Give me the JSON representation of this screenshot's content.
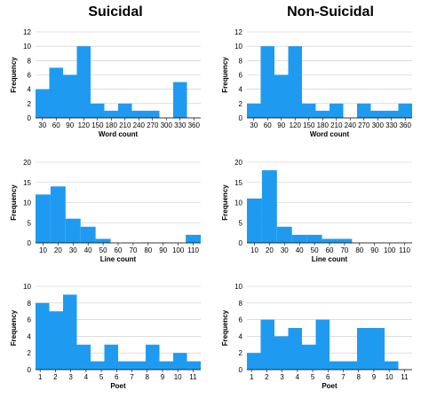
{
  "column_titles": [
    "Suicidal",
    "Non-Suicidal"
  ],
  "colors": {
    "bar": "#1E9BF0",
    "axis": "#000000",
    "grid": "#c8c8c8"
  },
  "chart_data": [
    {
      "type": "bar",
      "group": "Suicidal",
      "row": 0,
      "xlabel": "Word count",
      "ylabel": "Frequency",
      "ylim": [
        0,
        12
      ],
      "yticks": [
        0,
        2,
        4,
        6,
        8,
        10,
        12
      ],
      "xticks": [
        30,
        60,
        90,
        120,
        150,
        180,
        210,
        240,
        270,
        300,
        330,
        360
      ],
      "xtick_labels": [
        "30",
        "60",
        "90",
        "120",
        "150",
        "180",
        "210",
        "240",
        "270",
        "300",
        "330",
        "360"
      ],
      "bin_edges": [
        15,
        45,
        75,
        105,
        135,
        165,
        195,
        225,
        255,
        285,
        315,
        345
      ],
      "values": [
        4,
        7,
        6,
        10,
        2,
        1,
        2,
        1,
        1,
        0,
        5
      ]
    },
    {
      "type": "bar",
      "group": "Non-Suicidal",
      "row": 0,
      "xlabel": "Word count",
      "ylabel": "Frequency",
      "ylim": [
        0,
        12
      ],
      "yticks": [
        0,
        2,
        4,
        6,
        8,
        10,
        12
      ],
      "xticks": [
        30,
        60,
        90,
        120,
        150,
        180,
        210,
        240,
        270,
        300,
        330,
        360
      ],
      "xtick_labels": [
        "30",
        "60",
        "90",
        "120",
        "150",
        "180",
        "210",
        "240",
        "270",
        "300",
        "330",
        "360"
      ],
      "bin_edges": [
        15,
        45,
        75,
        105,
        135,
        165,
        195,
        225,
        255,
        285,
        315,
        345,
        375
      ],
      "values": [
        2,
        10,
        6,
        10,
        2,
        1,
        2,
        0,
        2,
        1,
        1,
        2
      ]
    },
    {
      "type": "bar",
      "group": "Suicidal",
      "row": 1,
      "xlabel": "Line count",
      "ylabel": "Frequency",
      "ylim": [
        0,
        20
      ],
      "yticks": [
        0,
        5,
        10,
        15,
        20
      ],
      "xticks": [
        10,
        20,
        30,
        40,
        50,
        60,
        70,
        80,
        90,
        100,
        110
      ],
      "xtick_labels": [
        "10",
        "20",
        "30",
        "40",
        "50",
        "60",
        "70",
        "80",
        "90",
        "100",
        "110"
      ],
      "bin_edges": [
        5,
        15,
        25,
        35,
        45,
        55,
        65,
        75,
        85,
        95,
        105,
        115
      ],
      "values": [
        12,
        14,
        6,
        4,
        1,
        0,
        0,
        0,
        0,
        0,
        2
      ]
    },
    {
      "type": "bar",
      "group": "Non-Suicidal",
      "row": 1,
      "xlabel": "Line count",
      "ylabel": "Frequency",
      "ylim": [
        0,
        20
      ],
      "yticks": [
        0,
        5,
        10,
        15,
        20
      ],
      "xticks": [
        10,
        20,
        30,
        40,
        50,
        60,
        70,
        80,
        90,
        100,
        110
      ],
      "xtick_labels": [
        "10",
        "20",
        "30",
        "40",
        "50",
        "60",
        "70",
        "80",
        "90",
        "100",
        "110"
      ],
      "bin_edges": [
        5,
        15,
        25,
        35,
        45,
        55,
        65,
        75,
        85,
        95,
        105,
        115
      ],
      "values": [
        11,
        18,
        4,
        2,
        2,
        1,
        1,
        0,
        0,
        0,
        0
      ]
    },
    {
      "type": "bar",
      "group": "Suicidal",
      "row": 2,
      "xlabel": "Poet",
      "ylabel": "Frequency",
      "ylim": [
        0,
        10
      ],
      "yticks": [
        0,
        2,
        4,
        6,
        8,
        10
      ],
      "xticks": [
        1,
        2,
        3,
        4,
        5,
        6,
        7,
        8,
        9,
        10,
        11
      ],
      "xtick_labels": [
        "1",
        "2",
        "3",
        "4",
        "5",
        "6",
        "7",
        "8",
        "9",
        "10",
        "11"
      ],
      "bin_edges": [
        0.7,
        1.6,
        2.5,
        3.4,
        4.3,
        5.2,
        6.1,
        7.0,
        7.9,
        8.8,
        9.7,
        10.6,
        11.5
      ],
      "values": [
        8,
        7,
        9,
        3,
        1,
        3,
        1,
        1,
        3,
        1,
        2,
        1
      ]
    },
    {
      "type": "bar",
      "group": "Non-Suicidal",
      "row": 2,
      "xlabel": "Poet",
      "ylabel": "Frequency",
      "ylim": [
        0,
        10
      ],
      "yticks": [
        0,
        2,
        4,
        6,
        8,
        10
      ],
      "xticks": [
        1,
        2,
        3,
        4,
        5,
        6,
        7,
        8,
        9,
        10,
        11
      ],
      "xtick_labels": [
        "1",
        "2",
        "3",
        "4",
        "5",
        "6",
        "7",
        "8",
        "9",
        "10",
        "11"
      ],
      "bin_edges": [
        0.7,
        1.6,
        2.5,
        3.4,
        4.3,
        5.2,
        6.1,
        7.0,
        7.9,
        8.8,
        9.7,
        10.6,
        11.5
      ],
      "values": [
        2,
        6,
        4,
        5,
        3,
        6,
        1,
        1,
        5,
        5,
        1,
        0
      ]
    }
  ]
}
